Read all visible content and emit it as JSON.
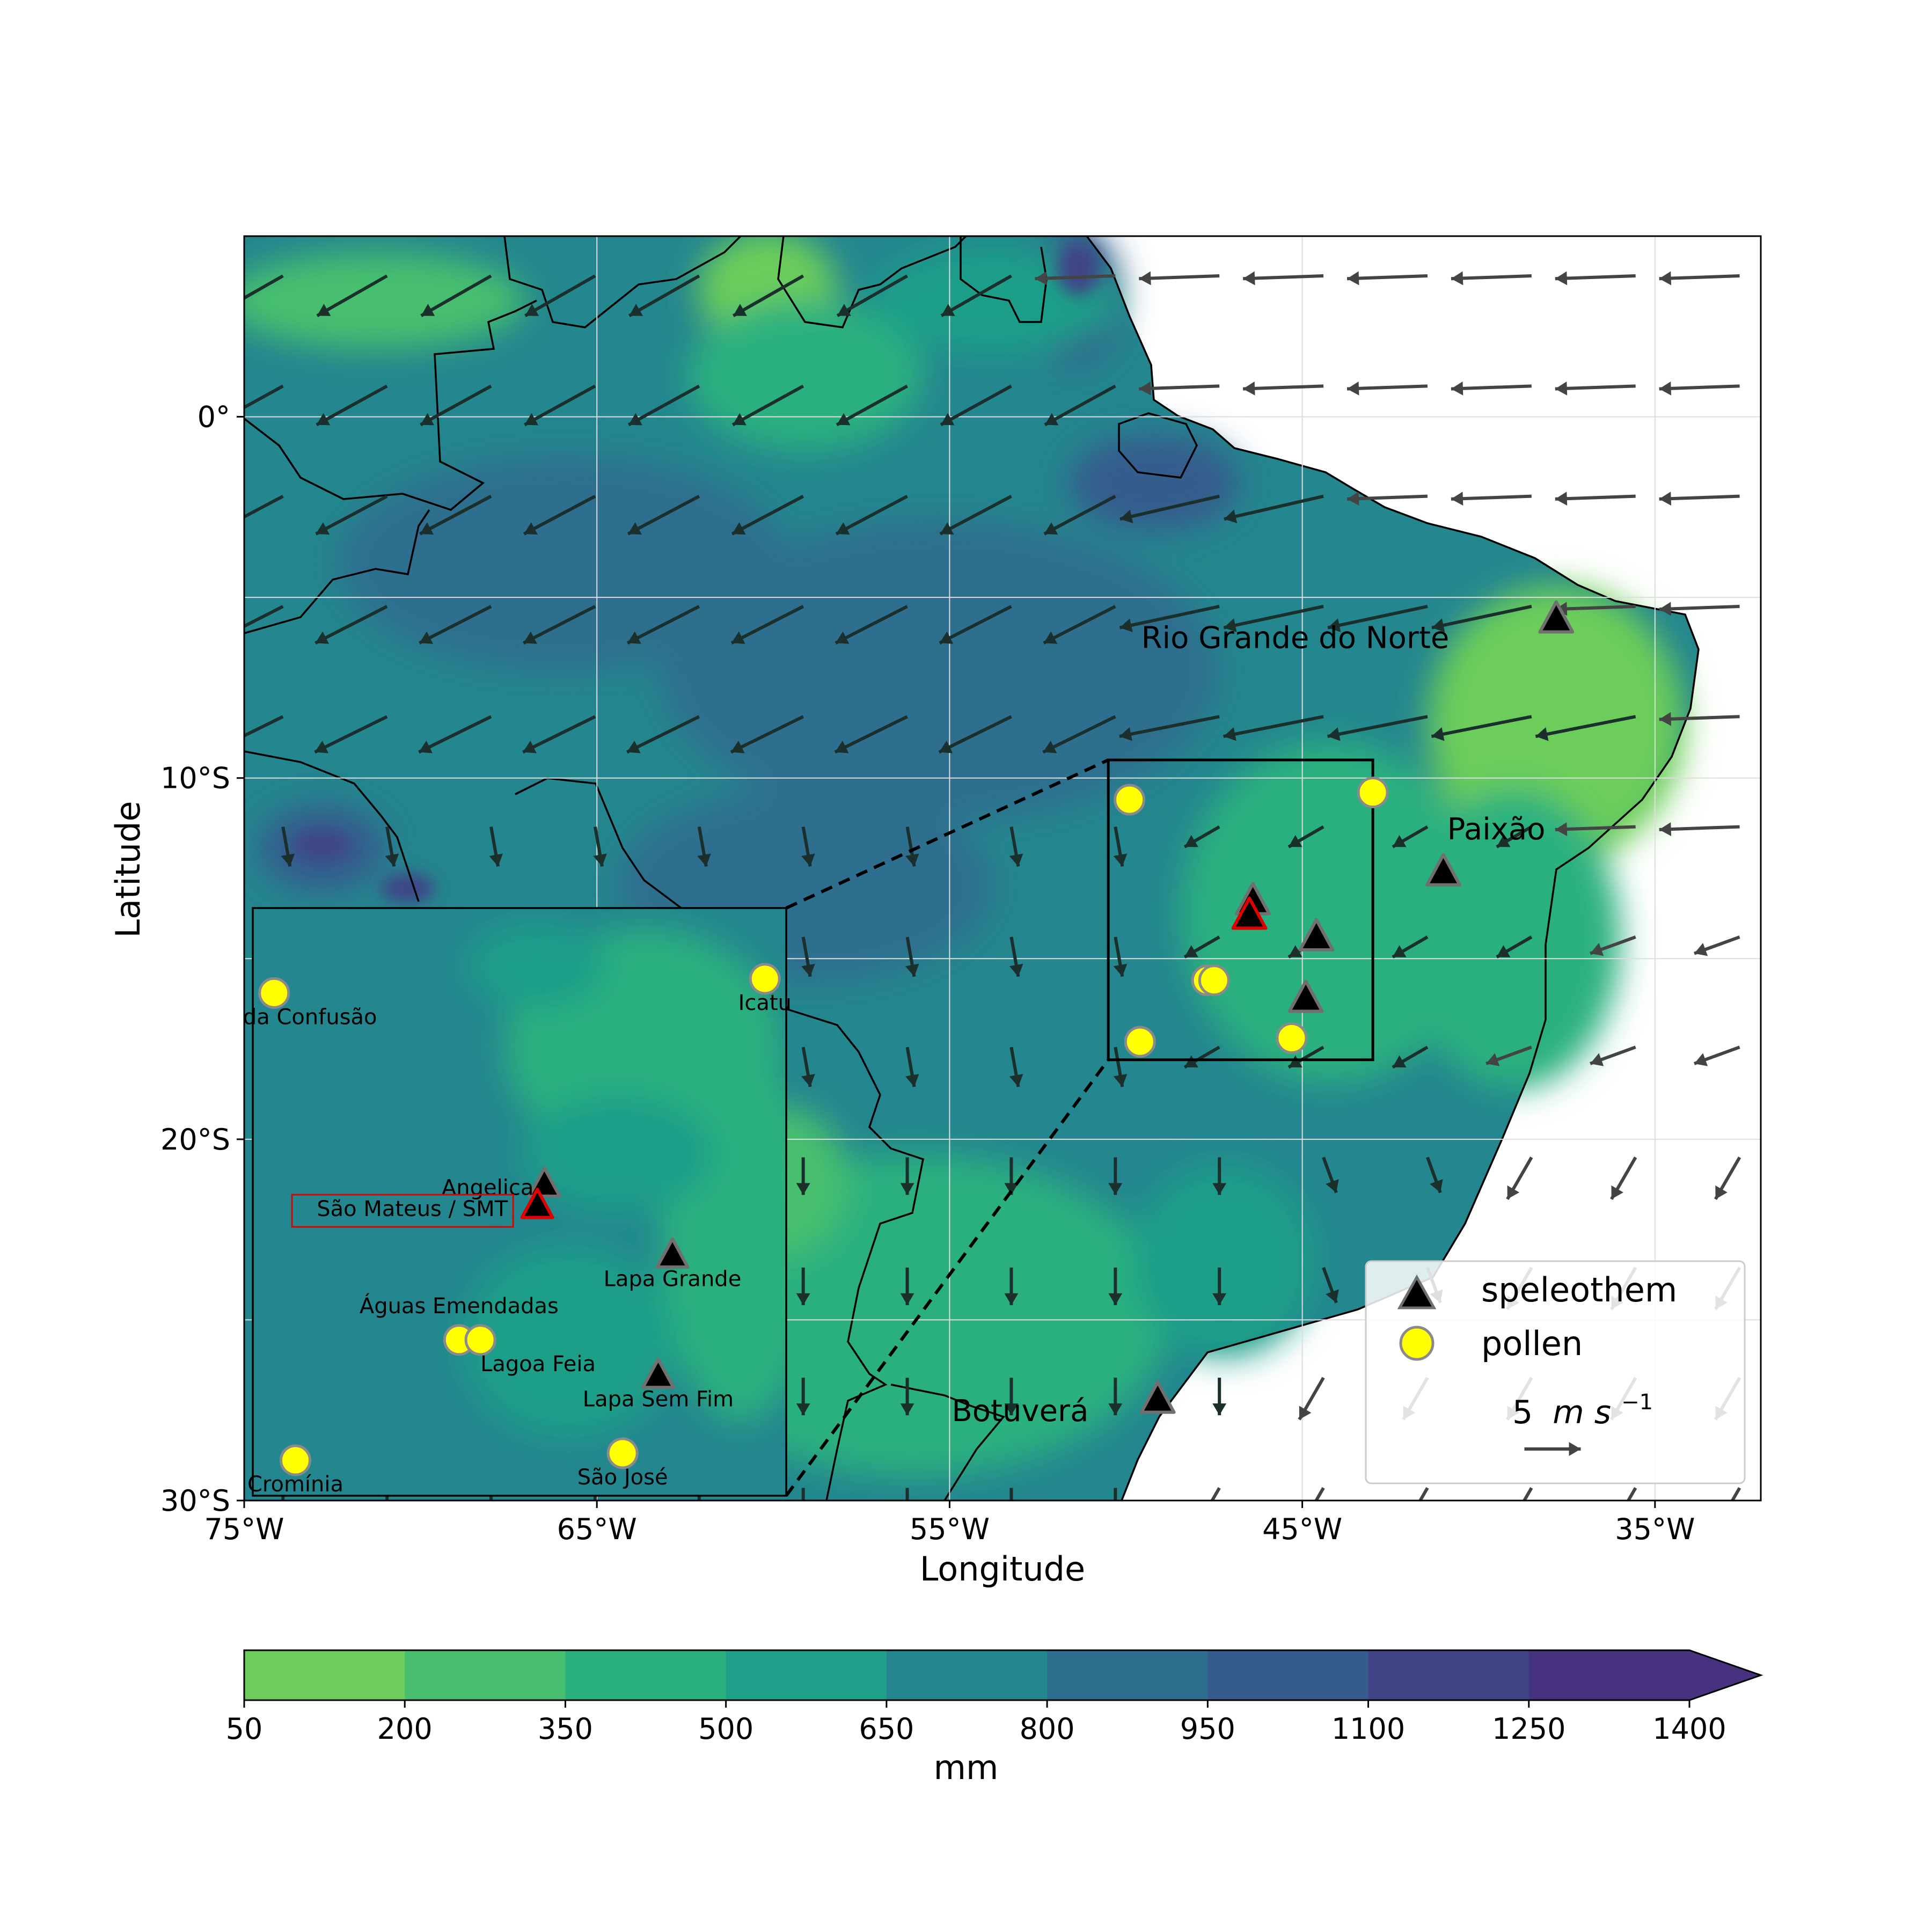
{
  "axes": {
    "xlabel": "Longitude",
    "ylabel": "Latitude",
    "xlim": [
      -75,
      -32
    ],
    "ylim": [
      -30,
      5
    ],
    "xticks": [
      {
        "value": -75,
        "label": "75°W"
      },
      {
        "value": -65,
        "label": "65°W"
      },
      {
        "value": -55,
        "label": "55°W"
      },
      {
        "value": -45,
        "label": "45°W"
      },
      {
        "value": -35,
        "label": "35°W"
      }
    ],
    "yticks": [
      {
        "value": 0,
        "label": "0°"
      },
      {
        "value": -10,
        "label": "10°S"
      },
      {
        "value": -20,
        "label": "20°S"
      },
      {
        "value": -30,
        "label": "30°S"
      }
    ],
    "grid": true
  },
  "colorbar": {
    "label": "mm",
    "levels": [
      "50",
      "200",
      "350",
      "500",
      "650",
      "800",
      "950",
      "1100",
      "1250",
      "1400"
    ],
    "colors": [
      "#6ccd5a",
      "#47bf6e",
      "#2ab07f",
      "#1f9e89",
      "#24868e",
      "#2e6e8e",
      "#365c8d",
      "#414487",
      "#46327e"
    ],
    "extend": "max"
  },
  "region_labels": [
    {
      "text": "Rio Grande do Norte",
      "lon": -45.2,
      "lat": -6.4
    },
    {
      "text": "Paixão",
      "lon": -39.5,
      "lat": -11.7
    },
    {
      "text": "Botuverá",
      "lon": -53.0,
      "lat": -27.8
    }
  ],
  "sites": [
    {
      "type": "speleothem",
      "lon": -37.8,
      "lat": -5.6
    },
    {
      "type": "speleothem",
      "lon": -41.0,
      "lat": -12.6
    },
    {
      "type": "speleothem",
      "lon": -49.1,
      "lat": -27.2
    },
    {
      "type": "speleothem",
      "lon": -46.4,
      "lat": -13.4
    },
    {
      "type": "speleothem",
      "lon": -44.6,
      "lat": -14.4
    },
    {
      "type": "speleothem",
      "lon": -44.9,
      "lat": -16.1
    },
    {
      "type": "speleothem",
      "lon": -46.5,
      "lat": -13.8,
      "highlight": true
    },
    {
      "type": "pollen",
      "lon": -49.9,
      "lat": -10.6
    },
    {
      "type": "pollen",
      "lon": -43.0,
      "lat": -10.4
    },
    {
      "type": "pollen",
      "lon": -47.7,
      "lat": -15.6
    },
    {
      "type": "pollen",
      "lon": -47.5,
      "lat": -15.6
    },
    {
      "type": "pollen",
      "lon": -49.6,
      "lat": -17.3
    },
    {
      "type": "pollen",
      "lon": -45.3,
      "lat": -17.2
    }
  ],
  "zoom_box": {
    "lon": [
      -50.5,
      -43.0
    ],
    "lat": [
      -17.8,
      -9.5
    ]
  },
  "inset": {
    "sites": [
      {
        "type": "pollen",
        "name": "Lagoa da Confusão",
        "lon": -50.2,
        "lat": -10.7
      },
      {
        "type": "pollen",
        "name": "Icatu",
        "lon": -43.3,
        "lat": -10.5
      },
      {
        "type": "speleothem",
        "name": "Angelica",
        "lon": -46.4,
        "lat": -13.4
      },
      {
        "type": "speleothem",
        "name": "São Mateus / SMT",
        "lon": -46.5,
        "lat": -13.7,
        "highlight": true
      },
      {
        "type": "speleothem",
        "name": "Lapa Grande",
        "lon": -44.6,
        "lat": -14.4
      },
      {
        "type": "pollen",
        "name": "Águas Emendadas",
        "lon": -47.6,
        "lat": -15.6
      },
      {
        "type": "pollen",
        "name": "Lagoa Feia",
        "lon": -47.3,
        "lat": -15.6
      },
      {
        "type": "speleothem",
        "name": "Lapa Sem Fim",
        "lon": -44.8,
        "lat": -16.1
      },
      {
        "type": "pollen",
        "name": "São José",
        "lon": -45.3,
        "lat": -17.2
      },
      {
        "type": "pollen",
        "name": "Cromínia",
        "lon": -49.9,
        "lat": -17.3
      }
    ]
  },
  "legend": {
    "speleothem_label": "speleothem",
    "pollen_label": "pollen",
    "quiver_key_value": "5",
    "quiver_key_unit": "m s",
    "quiver_key_exp": "−1",
    "quiver_key_ms": 5
  },
  "colors": {
    "land_coast": "#000000",
    "speleothem_fill": "#000000",
    "speleothem_edge": "#707070",
    "highlight_edge": "#e00000",
    "pollen_fill": "#ffff00",
    "pollen_edge": "#8a8a8a",
    "arrow_land": "#1b2f2c",
    "arrow_ocean": "#444444"
  }
}
